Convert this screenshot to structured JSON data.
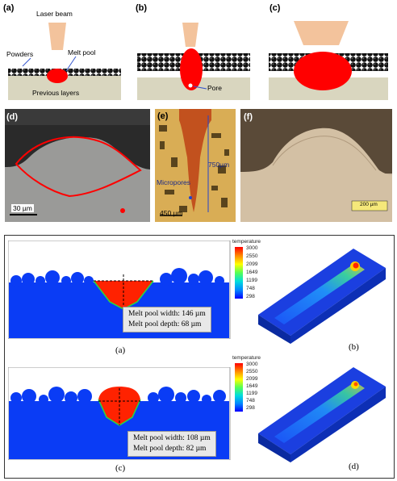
{
  "top": {
    "panel_a": {
      "letter": "(a)",
      "laser": "Laser beam",
      "powders": "Powders",
      "melt_pool": "Melt pool",
      "layers": "Previous layers"
    },
    "panel_b": {
      "letter": "(b)",
      "pore": "Pore"
    },
    "panel_c": {
      "letter": "(c)"
    },
    "panel_d": {
      "letter": "(d)",
      "scale": "30 µm"
    },
    "panel_e": {
      "letter": "(e)",
      "depth": "750µm",
      "micropores": "Micropores",
      "scale": "450 µm"
    },
    "panel_f": {
      "letter": "(f)",
      "scale": "200 µm"
    }
  },
  "bottom": {
    "sim_a": {
      "width_text": "Melt pool width: 146 µm",
      "depth_text": "Melt pool depth: 68 µm",
      "caption": "(a)"
    },
    "sim_b": {
      "caption": "(b)"
    },
    "sim_c": {
      "width_text": "Melt pool width: 108 µm",
      "depth_text": "Melt pool depth: 82 µm",
      "caption": "(c)"
    },
    "sim_d": {
      "caption": "(d)"
    },
    "legend": {
      "title": "temperature",
      "values": [
        "3000",
        "2550",
        "2099",
        "1649",
        "1199",
        "748",
        "298"
      ]
    }
  },
  "colors": {
    "melt": "#ff0000",
    "substrate": "#0a3cf5",
    "laser": "#f3c39c",
    "plate": "#d9d6bf"
  }
}
